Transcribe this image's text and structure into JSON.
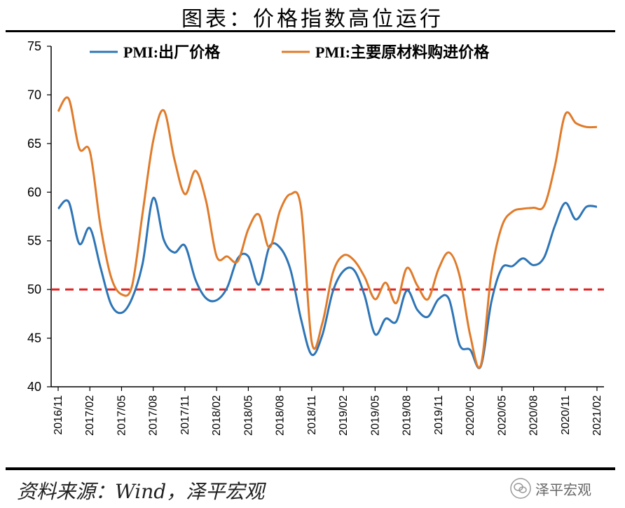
{
  "page": {
    "title": "图表：价格指数高位运行",
    "source": "资料来源：Wind，泽平宏观",
    "watermark": "泽平宏观"
  },
  "chart_data": {
    "type": "line",
    "ylim": [
      40,
      75
    ],
    "yticks": [
      40,
      45,
      50,
      55,
      60,
      65,
      70,
      75
    ],
    "x": [
      "2016/11",
      "2016/12",
      "2017/01",
      "2017/02",
      "2017/03",
      "2017/04",
      "2017/05",
      "2017/06",
      "2017/07",
      "2017/08",
      "2017/09",
      "2017/10",
      "2017/11",
      "2017/12",
      "2018/01",
      "2018/02",
      "2018/03",
      "2018/04",
      "2018/05",
      "2018/06",
      "2018/07",
      "2018/08",
      "2018/09",
      "2018/10",
      "2018/11",
      "2018/12",
      "2019/01",
      "2019/02",
      "2019/03",
      "2019/04",
      "2019/05",
      "2019/06",
      "2019/07",
      "2019/08",
      "2019/09",
      "2019/10",
      "2019/11",
      "2019/12",
      "2020/01",
      "2020/02",
      "2020/03",
      "2020/04",
      "2020/05",
      "2020/06",
      "2020/07",
      "2020/08",
      "2020/09",
      "2020/10",
      "2020/11",
      "2020/12",
      "2021/01",
      "2021/02"
    ],
    "xtick_labels": [
      "2016/11",
      "2017/02",
      "2017/05",
      "2017/08",
      "2017/11",
      "2018/02",
      "2018/05",
      "2018/08",
      "2018/11",
      "2019/02",
      "2019/05",
      "2019/08",
      "2019/11",
      "2020/02",
      "2020/05",
      "2020/08",
      "2020/11",
      "2021/02"
    ],
    "reference_line": {
      "value": 50,
      "color": "#e02020",
      "style": "dashed"
    },
    "legend_position": "top",
    "series": [
      {
        "name": "PMI:出厂价格",
        "color": "#2e75b6",
        "values": [
          58.3,
          59.0,
          54.7,
          56.3,
          52.3,
          48.5,
          47.6,
          49.1,
          52.7,
          59.4,
          55.1,
          53.8,
          54.5,
          51.0,
          49.1,
          48.9,
          50.2,
          53.2,
          53.4,
          50.5,
          54.4,
          54.3,
          52.0,
          46.9,
          43.3,
          45.3,
          49.8,
          51.9,
          52.0,
          49.4,
          45.4,
          47.0,
          46.7,
          49.9,
          47.9,
          47.2,
          49.0,
          49.0,
          44.3,
          43.8,
          42.1,
          48.7,
          52.2,
          52.4,
          53.2,
          52.5,
          53.3,
          56.5,
          58.9,
          57.2,
          58.5,
          58.5
        ]
      },
      {
        "name": "PMI:主要原材料购进价格",
        "color": "#e07b2a",
        "values": [
          68.3,
          69.6,
          64.5,
          64.2,
          56.6,
          51.3,
          49.5,
          50.4,
          57.9,
          65.3,
          68.4,
          63.4,
          59.8,
          62.2,
          59.1,
          53.4,
          53.4,
          52.9,
          56.2,
          57.7,
          54.3,
          58.1,
          59.8,
          58.3,
          44.6,
          46.5,
          51.7,
          53.5,
          53.0,
          51.3,
          49.0,
          50.7,
          48.6,
          52.2,
          50.4,
          49.0,
          52.1,
          53.8,
          51.4,
          45.3,
          42.2,
          51.6,
          56.5,
          58.0,
          58.3,
          58.4,
          58.6,
          62.6,
          68.0,
          67.1,
          66.7,
          66.7
        ]
      }
    ]
  }
}
